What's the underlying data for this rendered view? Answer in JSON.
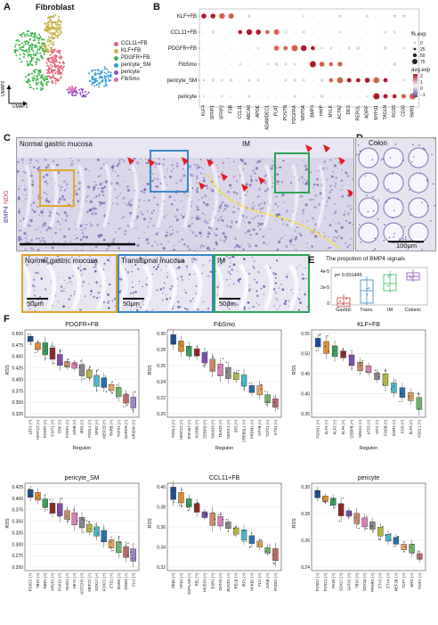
{
  "panelA": {
    "label": "A",
    "title": "Fibroblast",
    "umap1": "UMAP1",
    "umap2": "UMAP2",
    "legend": [
      {
        "name": "CCL11+FB",
        "color": "#e8617a"
      },
      {
        "name": "KLF+FB",
        "color": "#c9b24a"
      },
      {
        "name": "PDGFR+FB",
        "color": "#3cb44b"
      },
      {
        "name": "pericyte_SM",
        "color": "#3a9ad9"
      },
      {
        "name": "pericyte",
        "color": "#8e4fbf"
      },
      {
        "name": "FibSmo",
        "color": "#e06fb0"
      }
    ]
  },
  "panelB": {
    "label": "B",
    "rows": [
      "KLF+FB",
      "CCL11+FB",
      "PDGFR+FB",
      "FibSmo",
      "pericyte_SM",
      "pericyte"
    ],
    "genes": [
      "KLF4",
      "SFRP1",
      "SFRP2",
      "F3B",
      "CCL11",
      "ABCA8",
      "APOE",
      "ADAMDEC1",
      "PLAT",
      "POSTN",
      "PDGFRA",
      "WNT5A",
      "BMP4",
      "HHIP",
      "MYLK",
      "ACTA2",
      "DES",
      "RERGL",
      "ADIRF",
      "MYH11",
      "TAGLN",
      "RGS5",
      "CD36",
      "SMR1"
    ],
    "legend_pct_title": "%.exp",
    "pct_values": [
      "0",
      "25",
      "50",
      "75"
    ],
    "legend_avg_title": "avg.exp",
    "avg_values": [
      "2",
      "1",
      "0",
      "−1"
    ]
  },
  "panelC": {
    "label": "C",
    "left_region": "Normal gastric mucosa",
    "right_region": "IM",
    "side_label_1": "BMP4",
    "side_label_2": "NDG",
    "insets": [
      {
        "title": "Normal gastric mucosa",
        "scale": "50μm"
      },
      {
        "title": "Transitional mucosa",
        "scale": "50μm"
      },
      {
        "title": "IM",
        "scale": "50μm"
      }
    ]
  },
  "panelD": {
    "label": "D",
    "title": "Colon",
    "scale": "100μm"
  },
  "panelE": {
    "label": "E",
    "title": "The propotion of BMP4 signals",
    "pvalue": "p= 0.001445",
    "yticks": [
      "4e-5",
      "2e-5",
      "0"
    ],
    "categories": [
      "Gastric",
      "Trans.",
      "IM",
      "Colonic"
    ],
    "colors": [
      "#d23a3a",
      "#3a86c8",
      "#3bb55e",
      "#8e4fbf"
    ]
  },
  "panelF": {
    "label": "F",
    "ylabel": "RSS",
    "xlabel": "Regulon",
    "plots": [
      {
        "title": "PDGFR+FB",
        "yticks": [
          "0.500",
          "0.475",
          "0.450",
          "0.425",
          "0.400",
          "0.375",
          "0.350",
          "0.325"
        ],
        "regulons": [
          "LEF1 (+)",
          "NFATC2 (+)",
          "FOXP2 (+)",
          "STAT1 (+)",
          "ERF (+)",
          "FOXF1 (+)",
          "JUNB (+)",
          "IRF9 (+)",
          "FOXL1 (+)",
          "NFE2 (+)",
          "MEF2D (+)",
          "RXRB (+)",
          "TCF21 (+)",
          "GAPDH (+)",
          "ARID3A (+)"
        ]
      },
      {
        "title": "FibSmo",
        "yticks": [
          "0.30",
          "0.28",
          "0.26",
          "0.24",
          "0.22",
          "0.20"
        ],
        "regulons": [
          "FOXL1 (+)",
          "NFATC2 (+)",
          "ZNF467 (+)",
          "HOXB6 (+)",
          "CEBPD (+)",
          "SMAD3 (+)",
          "TEAD3 (+)",
          "NKX3-1 (+)",
          "SP2 (+)",
          "CREB3L1 (+)",
          "PRDM1 (+)",
          "NFYB (+)",
          "TCF21 (+)",
          "ETS1 (+)"
        ]
      },
      {
        "title": "KLF+FB",
        "yticks": [
          "0.55",
          "0.50",
          "0.45",
          "0.40",
          "0.35"
        ],
        "regulons": [
          "FOXO1 (+)",
          "KLF4 (+)",
          "KLF2 (+)",
          "KLF6 (+)",
          "CEBPB (+)",
          "NR4A1 (+)",
          "ATF3 (+)",
          "MYC (+)",
          "FOSB (+)",
          "EGR1 (+)",
          "FOS (+)",
          "ELF3 (+)",
          "FOSL1 (+)"
        ]
      },
      {
        "title": "pericyte_SM",
        "yticks": [
          "0.425",
          "0.400",
          "0.375",
          "0.350",
          "0.325",
          "0.300",
          "0.275",
          "0.250"
        ],
        "regulons": [
          "FOXC2 (+)",
          "TBX2 (+)",
          "EBF2 (+)",
          "NR2F2 (+)",
          "FOXS1 (+)",
          "TEAD1 (+)",
          "HEY2 (+)",
          "NOTCH3 (+)",
          "MEF2C (+)",
          "SOX17 (+)",
          "FOXC1 (+)",
          "ETS1 (+)",
          "RARA (+)",
          "CREM (+)",
          "FLI1 (+)"
        ]
      },
      {
        "title": "CCL11+FB",
        "yticks": [
          "0.40",
          "0.38",
          "0.36",
          "0.34",
          "0.32"
        ],
        "regulons": [
          "ZEB1 (+)",
          "NFE2 (+)",
          "EGFLAM (+)",
          "REL (+)",
          "HIVEP3 (+)",
          "ESR1 (+)",
          "GATA5 (+)",
          "RUNX1 (+)",
          "RELB (+)",
          "IRF1 (+)",
          "NFKB1 (+)",
          "FLI1 (+)",
          "JUNB (+)",
          "RAD21 (+)"
        ]
      },
      {
        "title": "pericyte",
        "yticks": [
          "0.30",
          "0.28",
          "0.26",
          "0.24"
        ],
        "regulons": [
          "FOXD2 (+)",
          "FOXC1 (+)",
          "PAX5 (+)",
          "SOX17 (+)",
          "GATA2 (+)",
          "TBX2 (+)",
          "SOX18 (+)",
          "PPARG (+)",
          "ETV2 (+)",
          "ETV4 (+)",
          "MEF2B (+)",
          "TCF7 (+)",
          "ERG (+)",
          "TGIF2 (+)"
        ]
      }
    ]
  }
}
